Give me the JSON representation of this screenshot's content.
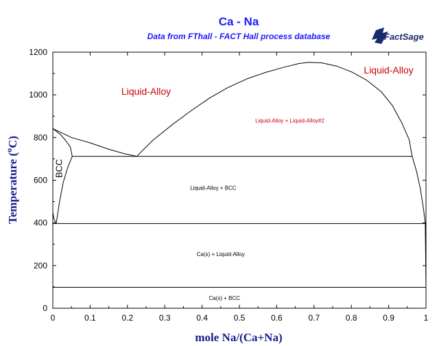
{
  "chart_data": {
    "type": "line",
    "title": "Ca - Na",
    "subtitle": "Data from FThall - FACT Hall process database",
    "xlabel": "mole Na/(Ca+Na)",
    "ylabel_main": "Temperature (",
    "ylabel_sup": "o",
    "ylabel_unit": "C)",
    "xlim": [
      0,
      1
    ],
    "ylim": [
      0,
      1200
    ],
    "x_ticks": [
      {
        "value": 0,
        "label": "0"
      },
      {
        "value": 0.1,
        "label": "0.1"
      },
      {
        "value": 0.2,
        "label": "0.2"
      },
      {
        "value": 0.3,
        "label": "0.3"
      },
      {
        "value": 0.4,
        "label": "0.4"
      },
      {
        "value": 0.5,
        "label": "0.5"
      },
      {
        "value": 0.6,
        "label": "0.6"
      },
      {
        "value": 0.7,
        "label": "0.7"
      },
      {
        "value": 0.8,
        "label": "0.8"
      },
      {
        "value": 0.9,
        "label": "0.9"
      },
      {
        "value": 1,
        "label": "1"
      }
    ],
    "y_ticks": [
      {
        "value": 0,
        "label": "0"
      },
      {
        "value": 200,
        "label": "200"
      },
      {
        "value": 400,
        "label": "400"
      },
      {
        "value": 600,
        "label": "600"
      },
      {
        "value": 800,
        "label": "800"
      },
      {
        "value": 1000,
        "label": "1000"
      },
      {
        "value": 1200,
        "label": "1200"
      }
    ],
    "lines": [
      {
        "name": "liquidus-left",
        "points": [
          [
            0,
            842
          ],
          [
            0.05,
            800
          ],
          [
            0.1,
            775
          ],
          [
            0.15,
            745
          ],
          [
            0.19,
            725
          ],
          [
            0.225,
            712
          ]
        ]
      },
      {
        "name": "liquidus-bcc",
        "points": [
          [
            0,
            842
          ],
          [
            0.02,
            815
          ],
          [
            0.035,
            785
          ],
          [
            0.047,
            755
          ],
          [
            0.052,
            712
          ]
        ]
      },
      {
        "name": "miscibility-gap",
        "points": [
          [
            0.225,
            712
          ],
          [
            0.27,
            790
          ],
          [
            0.32,
            860
          ],
          [
            0.37,
            925
          ],
          [
            0.42,
            985
          ],
          [
            0.47,
            1035
          ],
          [
            0.52,
            1075
          ],
          [
            0.57,
            1105
          ],
          [
            0.62,
            1130
          ],
          [
            0.66,
            1147
          ],
          [
            0.685,
            1152
          ],
          [
            0.72,
            1150
          ],
          [
            0.76,
            1135
          ],
          [
            0.8,
            1108
          ],
          [
            0.84,
            1070
          ],
          [
            0.88,
            1015
          ],
          [
            0.91,
            950
          ],
          [
            0.935,
            870
          ],
          [
            0.955,
            790
          ],
          [
            0.963,
            712
          ]
        ]
      },
      {
        "name": "liquidus-right",
        "points": [
          [
            0.963,
            712
          ],
          [
            0.975,
            640
          ],
          [
            0.985,
            560
          ],
          [
            0.993,
            470
          ],
          [
            0.998,
            400
          ],
          [
            1,
            350
          ]
        ]
      },
      {
        "name": "bcc-solvus",
        "points": [
          [
            0.052,
            712
          ],
          [
            0.04,
            660
          ],
          [
            0.028,
            590
          ],
          [
            0.018,
            500
          ],
          [
            0.012,
            430
          ],
          [
            0.009,
            397
          ]
        ]
      },
      {
        "name": "bcc-lower",
        "points": [
          [
            0,
            450
          ],
          [
            0.003,
            420
          ],
          [
            0.009,
            397
          ]
        ]
      },
      {
        "name": "na-edge",
        "points": [
          [
            0.998,
            400
          ],
          [
            1,
            98
          ]
        ]
      },
      {
        "name": "monotectic-710",
        "points": [
          [
            0.052,
            712
          ],
          [
            0.963,
            712
          ]
        ]
      },
      {
        "name": "eutectic-397",
        "points": [
          [
            0,
            397
          ],
          [
            1,
            397
          ]
        ]
      },
      {
        "name": "solid-98",
        "points": [
          [
            0,
            98
          ],
          [
            1,
            98
          ]
        ]
      }
    ],
    "annotations": [
      {
        "text": "Liquid-Alloy",
        "x": 0.25,
        "y": 1000,
        "color": "#cc0000"
      },
      {
        "text": "Liquid-Alloy",
        "x": 0.9,
        "y": 1100,
        "color": "#cc0000"
      },
      {
        "text": "Liquid-Alloy + Liquid-Alloy#2",
        "x": 0.635,
        "y": 870,
        "color": "#cc0000"
      },
      {
        "text": "BCC",
        "x": 0.025,
        "y": 655,
        "color": "#000000",
        "rotate": -90
      },
      {
        "text": "Liquid-Alloy + BCC",
        "x": 0.43,
        "y": 555,
        "color": "#000000"
      },
      {
        "text": "Ca(s) + Liquid-Alloy",
        "x": 0.45,
        "y": 245,
        "color": "#000000"
      },
      {
        "text": "Ca(s) + BCC",
        "x": 0.46,
        "y": 38,
        "color": "#000000"
      }
    ],
    "logo_text": "FactSage",
    "grid": false,
    "axis_color": "#000000",
    "title_color": "#1a1aff",
    "line_color": "#000000"
  }
}
